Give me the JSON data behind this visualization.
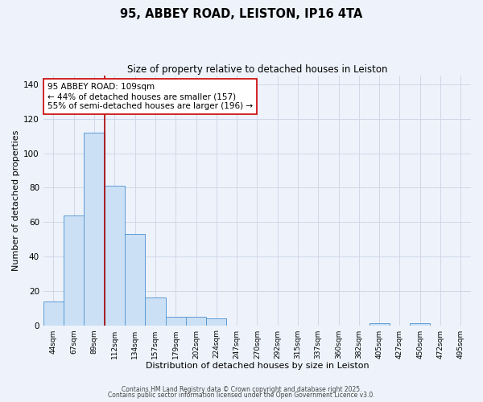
{
  "title": "95, ABBEY ROAD, LEISTON, IP16 4TA",
  "subtitle": "Size of property relative to detached houses in Leiston",
  "xlabel": "Distribution of detached houses by size in Leiston",
  "ylabel": "Number of detached properties",
  "categories": [
    "44sqm",
    "67sqm",
    "89sqm",
    "112sqm",
    "134sqm",
    "157sqm",
    "179sqm",
    "202sqm",
    "224sqm",
    "247sqm",
    "270sqm",
    "292sqm",
    "315sqm",
    "337sqm",
    "360sqm",
    "382sqm",
    "405sqm",
    "427sqm",
    "450sqm",
    "472sqm",
    "495sqm"
  ],
  "values": [
    14,
    64,
    112,
    81,
    53,
    16,
    5,
    5,
    4,
    0,
    0,
    0,
    0,
    0,
    0,
    0,
    1,
    0,
    1,
    0,
    0
  ],
  "bar_color": "#cce0f5",
  "bar_edge_color": "#5b9bd5",
  "grid_color": "#d0d8e8",
  "background_color": "#eef3fb",
  "vline_x_index": 3,
  "vline_color": "#aa0000",
  "ylim": [
    0,
    145
  ],
  "yticks": [
    0,
    20,
    40,
    60,
    80,
    100,
    120,
    140
  ],
  "annotation_text": "95 ABBEY ROAD: 109sqm\n← 44% of detached houses are smaller (157)\n55% of semi-detached houses are larger (196) →",
  "annotation_box_color": "#ffffff",
  "annotation_box_edge_color": "#cc0000",
  "footer1": "Contains HM Land Registry data © Crown copyright and database right 2025.",
  "footer2": "Contains public sector information licensed under the Open Government Licence v3.0."
}
